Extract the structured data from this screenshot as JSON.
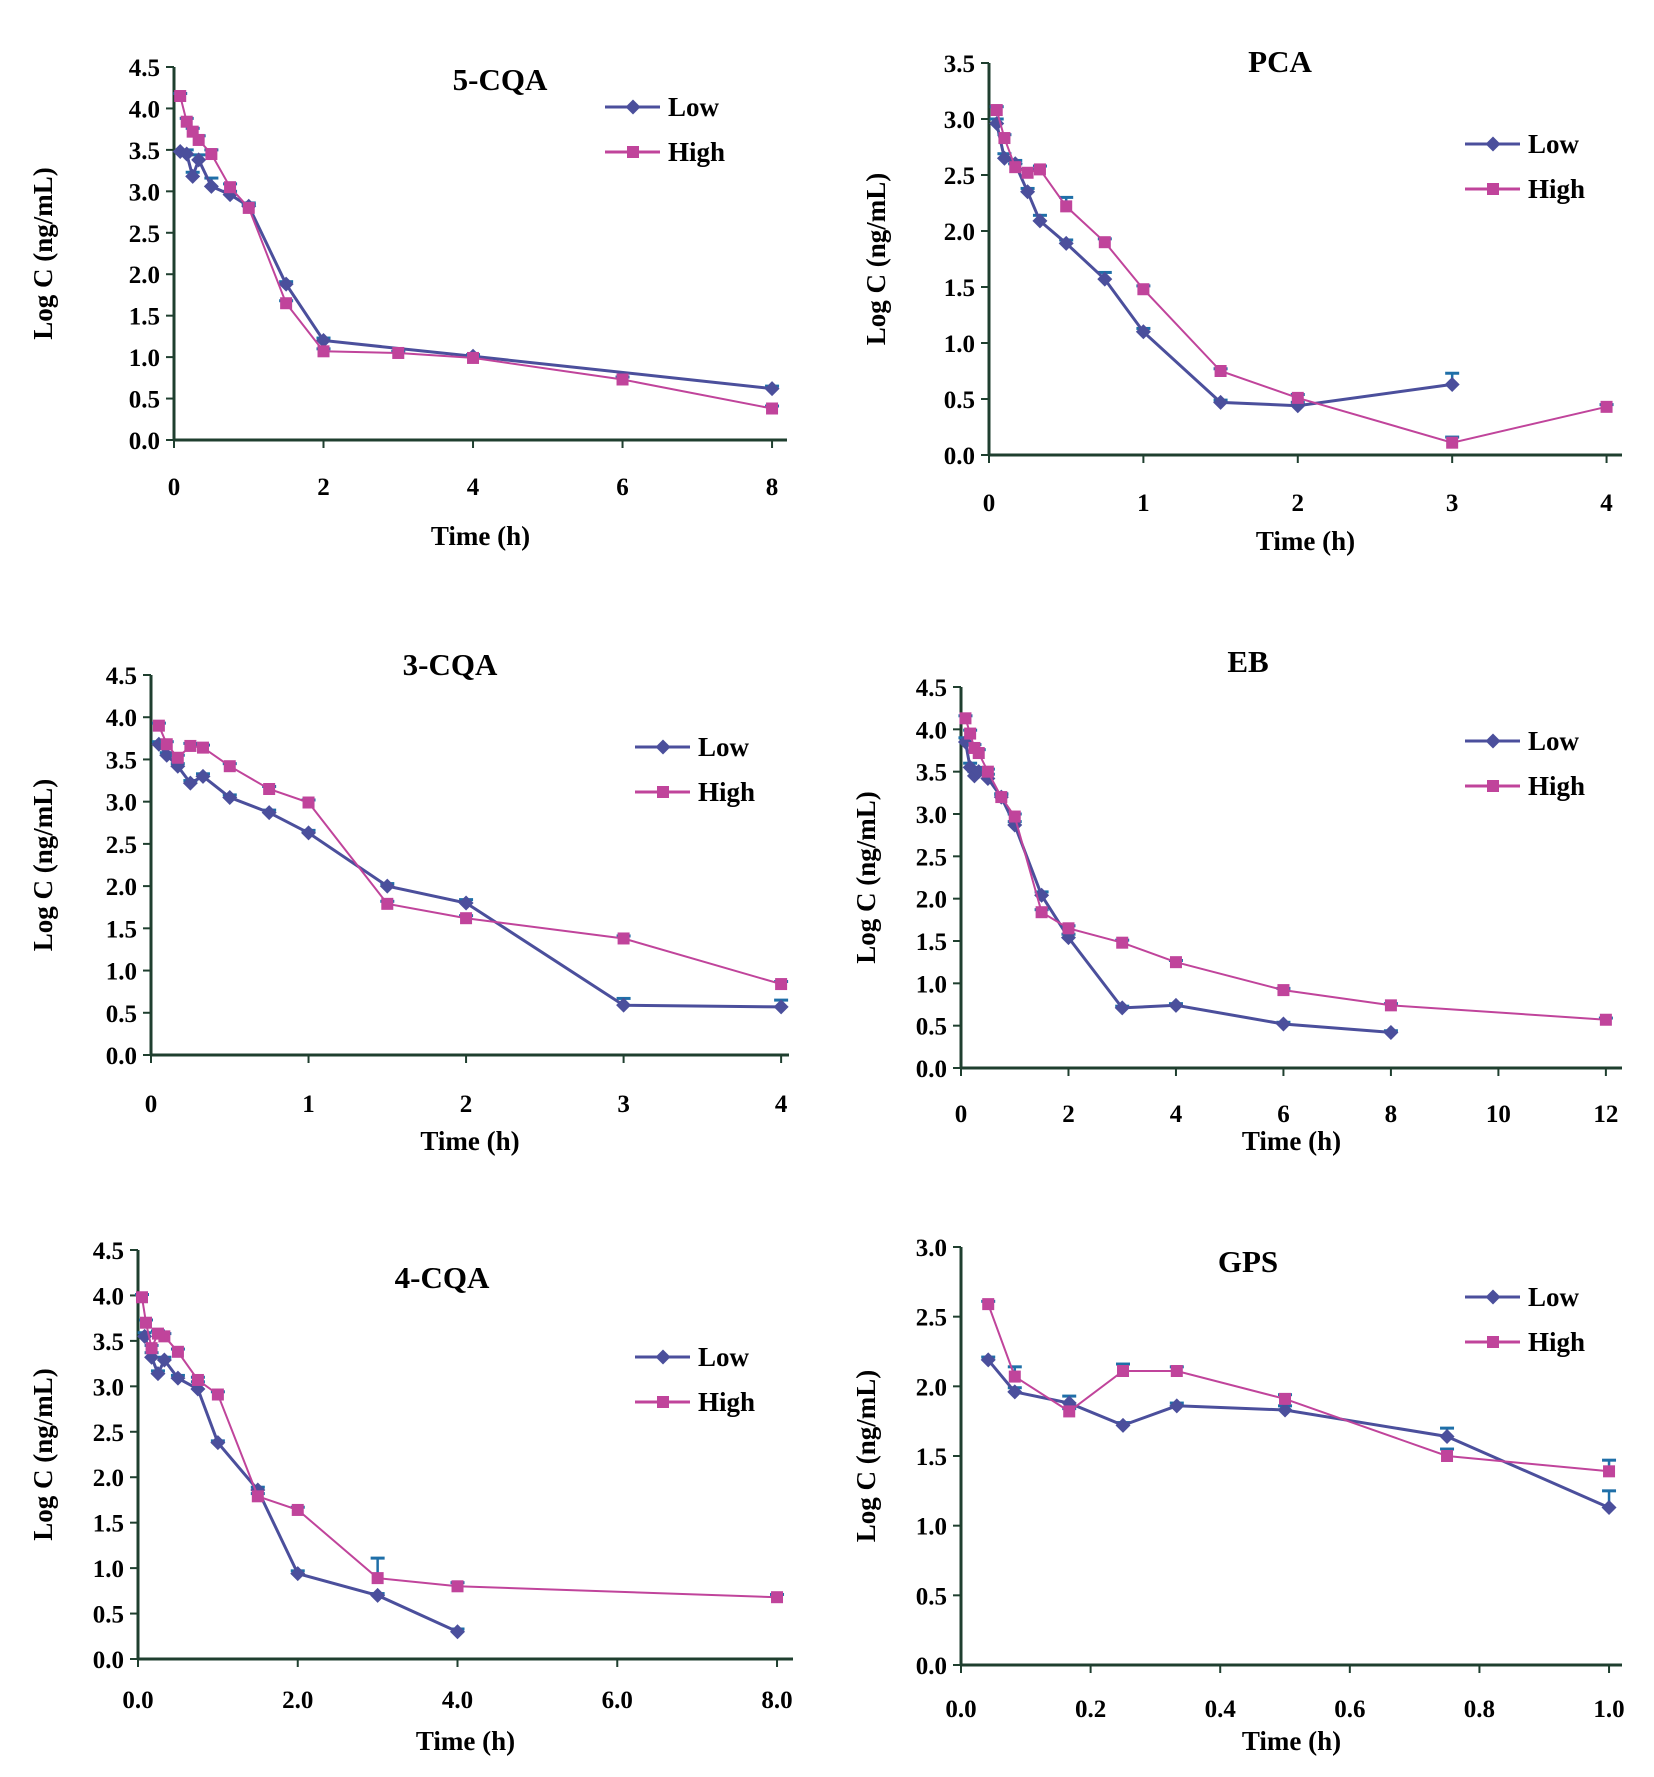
{
  "figure": {
    "colors": {
      "low": "#4b4f9c",
      "high": "#c0449b",
      "axis": "#1f3f2f",
      "error_bar": "#1f6fa8"
    }
  },
  "chart_data": [
    {
      "type": "line",
      "title": "5-CQA",
      "xlabel": "Time (h)",
      "ylabel": "Log C (ng/mL)",
      "xlim": [
        0,
        8.2
      ],
      "ylim": [
        0,
        4.5
      ],
      "xticks": [
        "0",
        "2",
        "4",
        "6",
        "8"
      ],
      "xtick_values": [
        0,
        2,
        4,
        6,
        8
      ],
      "yticks": [
        "0.0",
        "0.5",
        "1.0",
        "1.5",
        "2.0",
        "2.5",
        "3.0",
        "3.5",
        "4.0",
        "4.5"
      ],
      "legend": [
        "Low",
        "High"
      ],
      "series": [
        {
          "name": "Low",
          "x": [
            0.083,
            0.17,
            0.25,
            0.33,
            0.5,
            0.75,
            1,
            1.5,
            2,
            4,
            8
          ],
          "y": [
            3.48,
            3.45,
            3.18,
            3.38,
            3.06,
            2.96,
            2.82,
            1.88,
            1.2,
            1.01,
            0.62
          ],
          "err": [
            0.0,
            0.05,
            0.05,
            0.06,
            0.1,
            0.04,
            0.04,
            0.03,
            0.03,
            0.02,
            0.03
          ]
        },
        {
          "name": "High",
          "x": [
            0.083,
            0.17,
            0.25,
            0.33,
            0.5,
            0.75,
            1,
            1.5,
            2,
            3,
            4,
            6,
            8
          ],
          "y": [
            4.15,
            3.84,
            3.72,
            3.62,
            3.45,
            3.05,
            2.8,
            1.65,
            1.07,
            1.05,
            0.99,
            0.73,
            0.38
          ],
          "err": [
            0.03,
            0.04,
            0.04,
            0.05,
            0.05,
            0.04,
            0.04,
            0.03,
            0.03,
            0.02,
            0.02,
            0.03,
            0.03
          ]
        }
      ]
    },
    {
      "type": "line",
      "title": "PCA",
      "xlabel": "Time (h)",
      "ylabel": "Log C (ng/mL)",
      "xlim": [
        0,
        4.1
      ],
      "ylim": [
        0,
        3.5
      ],
      "xticks": [
        "0",
        "1",
        "2",
        "3",
        "4"
      ],
      "xtick_values": [
        0,
        1,
        2,
        3,
        4
      ],
      "yticks": [
        "0.0",
        "0.5",
        "1.0",
        "1.5",
        "2.0",
        "2.5",
        "3.0",
        "3.5"
      ],
      "legend": [
        "Low",
        "High"
      ],
      "series": [
        {
          "name": "Low",
          "x": [
            0.05,
            0.1,
            0.17,
            0.25,
            0.33,
            0.5,
            0.75,
            1,
            1.5,
            2,
            3
          ],
          "y": [
            2.96,
            2.65,
            2.6,
            2.35,
            2.09,
            1.89,
            1.57,
            1.1,
            0.47,
            0.44,
            0.63
          ],
          "err": [
            0.04,
            0.04,
            0.03,
            0.03,
            0.05,
            0.03,
            0.06,
            0.03,
            0.02,
            0.03,
            0.1
          ]
        },
        {
          "name": "High",
          "x": [
            0.05,
            0.1,
            0.17,
            0.25,
            0.33,
            0.5,
            0.75,
            1,
            1.5,
            2,
            3,
            4
          ],
          "y": [
            3.08,
            2.83,
            2.57,
            2.52,
            2.55,
            2.22,
            1.9,
            1.48,
            0.75,
            0.51,
            0.11,
            0.43
          ],
          "err": [
            0.03,
            0.03,
            0.03,
            0.03,
            0.03,
            0.08,
            0.03,
            0.03,
            0.02,
            0.03,
            0.05,
            0.02
          ]
        }
      ]
    },
    {
      "type": "line",
      "title": "3-CQA",
      "xlabel": "Time (h)",
      "ylabel": "Log C (ng/mL)",
      "xlim": [
        0,
        4.05
      ],
      "ylim": [
        0,
        4.5
      ],
      "xticks": [
        "0",
        "1",
        "2",
        "3",
        "4"
      ],
      "xtick_values": [
        0,
        1,
        2,
        3,
        4
      ],
      "yticks": [
        "0.0",
        "0.5",
        "1.0",
        "1.5",
        "2.0",
        "2.5",
        "3.0",
        "3.5",
        "4.0",
        "4.5"
      ],
      "legend": [
        "Low",
        "High"
      ],
      "series": [
        {
          "name": "Low",
          "x": [
            0.05,
            0.1,
            0.17,
            0.25,
            0.33,
            0.5,
            0.75,
            1,
            1.5,
            2,
            3,
            4
          ],
          "y": [
            3.68,
            3.55,
            3.42,
            3.22,
            3.3,
            3.05,
            2.87,
            2.63,
            2.0,
            1.8,
            0.59,
            0.57
          ],
          "err": [
            0.03,
            0.03,
            0.03,
            0.03,
            0.03,
            0.03,
            0.03,
            0.03,
            0.03,
            0.04,
            0.08,
            0.08
          ]
        },
        {
          "name": "High",
          "x": [
            0.05,
            0.1,
            0.17,
            0.25,
            0.33,
            0.5,
            0.75,
            1,
            1.5,
            2,
            3,
            4
          ],
          "y": [
            3.9,
            3.68,
            3.52,
            3.66,
            3.64,
            3.42,
            3.15,
            2.99,
            1.79,
            1.62,
            1.38,
            0.84
          ],
          "err": [
            0.03,
            0.03,
            0.03,
            0.03,
            0.03,
            0.03,
            0.03,
            0.03,
            0.03,
            0.03,
            0.03,
            0.03
          ]
        }
      ]
    },
    {
      "type": "line",
      "title": "EB",
      "xlabel": "Time (h)",
      "ylabel": "Log C (ng/mL)",
      "xlim": [
        0,
        12.3
      ],
      "ylim": [
        0,
        4.5
      ],
      "xticks": [
        "0",
        "2",
        "4",
        "6",
        "8",
        "10",
        "12"
      ],
      "xtick_values": [
        0,
        2,
        4,
        6,
        8,
        10,
        12
      ],
      "yticks": [
        "0.0",
        "0.5",
        "1.0",
        "1.5",
        "2.0",
        "2.5",
        "3.0",
        "3.5",
        "4.0",
        "4.5"
      ],
      "legend": [
        "Low",
        "High"
      ],
      "series": [
        {
          "name": "Low",
          "x": [
            0.083,
            0.17,
            0.25,
            0.33,
            0.5,
            0.75,
            1,
            1.5,
            2,
            3,
            4,
            6,
            8
          ],
          "y": [
            3.85,
            3.55,
            3.45,
            3.5,
            3.42,
            3.2,
            2.87,
            2.04,
            1.54,
            0.71,
            0.74,
            0.52,
            0.42
          ],
          "err": [
            0.05,
            0.05,
            0.05,
            0.05,
            0.05,
            0.04,
            0.04,
            0.04,
            0.04,
            0.02,
            0.02,
            0.02,
            0.02
          ]
        },
        {
          "name": "High",
          "x": [
            0.083,
            0.17,
            0.25,
            0.33,
            0.5,
            0.75,
            1,
            1.5,
            2,
            3,
            4,
            6,
            8,
            12
          ],
          "y": [
            4.13,
            3.95,
            3.78,
            3.72,
            3.5,
            3.2,
            2.97,
            1.84,
            1.65,
            1.48,
            1.25,
            0.92,
            0.74,
            0.57
          ],
          "err": [
            0.03,
            0.04,
            0.04,
            0.04,
            0.03,
            0.03,
            0.03,
            0.03,
            0.03,
            0.03,
            0.02,
            0.02,
            0.02,
            0.02
          ]
        }
      ]
    },
    {
      "type": "line",
      "title": "4-CQA",
      "xlabel": "Time (h)",
      "ylabel": "Log C (ng/mL)",
      "xlim": [
        0,
        8.2
      ],
      "ylim": [
        0,
        4.5
      ],
      "xticks": [
        "0.0",
        "2.0",
        "4.0",
        "6.0",
        "8.0"
      ],
      "xtick_values": [
        0,
        2,
        4,
        6,
        8
      ],
      "yticks": [
        "0.0",
        "0.5",
        "1.0",
        "1.5",
        "2.0",
        "2.5",
        "3.0",
        "3.5",
        "4.0",
        "4.5"
      ],
      "legend": [
        "Low",
        "High"
      ],
      "series": [
        {
          "name": "Low",
          "x": [
            0.083,
            0.17,
            0.25,
            0.33,
            0.5,
            0.75,
            1,
            1.5,
            2,
            3,
            4
          ],
          "y": [
            3.55,
            3.32,
            3.14,
            3.29,
            3.09,
            2.97,
            2.38,
            1.86,
            0.94,
            0.7,
            0.3
          ],
          "err": [
            0.04,
            0.05,
            0.03,
            0.03,
            0.03,
            0.08,
            0.02,
            0.03,
            0.03,
            0.02,
            0.03
          ]
        },
        {
          "name": "High",
          "x": [
            0.05,
            0.1,
            0.17,
            0.25,
            0.33,
            0.5,
            0.75,
            1,
            1.5,
            2,
            3,
            4,
            8
          ],
          "y": [
            3.98,
            3.7,
            3.42,
            3.58,
            3.55,
            3.38,
            3.07,
            2.91,
            1.79,
            1.64,
            0.89,
            0.8,
            0.68
          ],
          "err": [
            0.03,
            0.03,
            0.03,
            0.03,
            0.03,
            0.03,
            0.03,
            0.03,
            0.03,
            0.03,
            0.22,
            0.04,
            0.03
          ]
        }
      ]
    },
    {
      "type": "line",
      "title": "GPS",
      "xlabel": "Time (h)",
      "ylabel": "Log C (ng/mL)",
      "xlim": [
        0,
        1.02
      ],
      "ylim": [
        0,
        3.0
      ],
      "xticks": [
        "0.0",
        "0.2",
        "0.4",
        "0.6",
        "0.8",
        "1.0"
      ],
      "xtick_values": [
        0,
        0.2,
        0.4,
        0.6,
        0.8,
        1.0
      ],
      "yticks": [
        "0.0",
        "0.5",
        "1.0",
        "1.5",
        "2.0",
        "2.5",
        "3.0"
      ],
      "legend": [
        "Low",
        "High"
      ],
      "series": [
        {
          "name": "Low",
          "x": [
            0.042,
            0.083,
            0.167,
            0.25,
            0.333,
            0.5,
            0.75,
            1.0
          ],
          "y": [
            2.19,
            1.96,
            1.88,
            1.72,
            1.86,
            1.83,
            1.64,
            1.13
          ],
          "err": [
            0.02,
            0.03,
            0.05,
            0.02,
            0.02,
            0.03,
            0.06,
            0.12
          ]
        },
        {
          "name": "High",
          "x": [
            0.042,
            0.083,
            0.167,
            0.25,
            0.333,
            0.5,
            0.75,
            1.0
          ],
          "y": [
            2.59,
            2.07,
            1.82,
            2.11,
            2.11,
            1.91,
            1.5,
            1.39
          ],
          "err": [
            0.02,
            0.07,
            0.02,
            0.05,
            0.03,
            0.03,
            0.05,
            0.08
          ]
        }
      ]
    }
  ]
}
